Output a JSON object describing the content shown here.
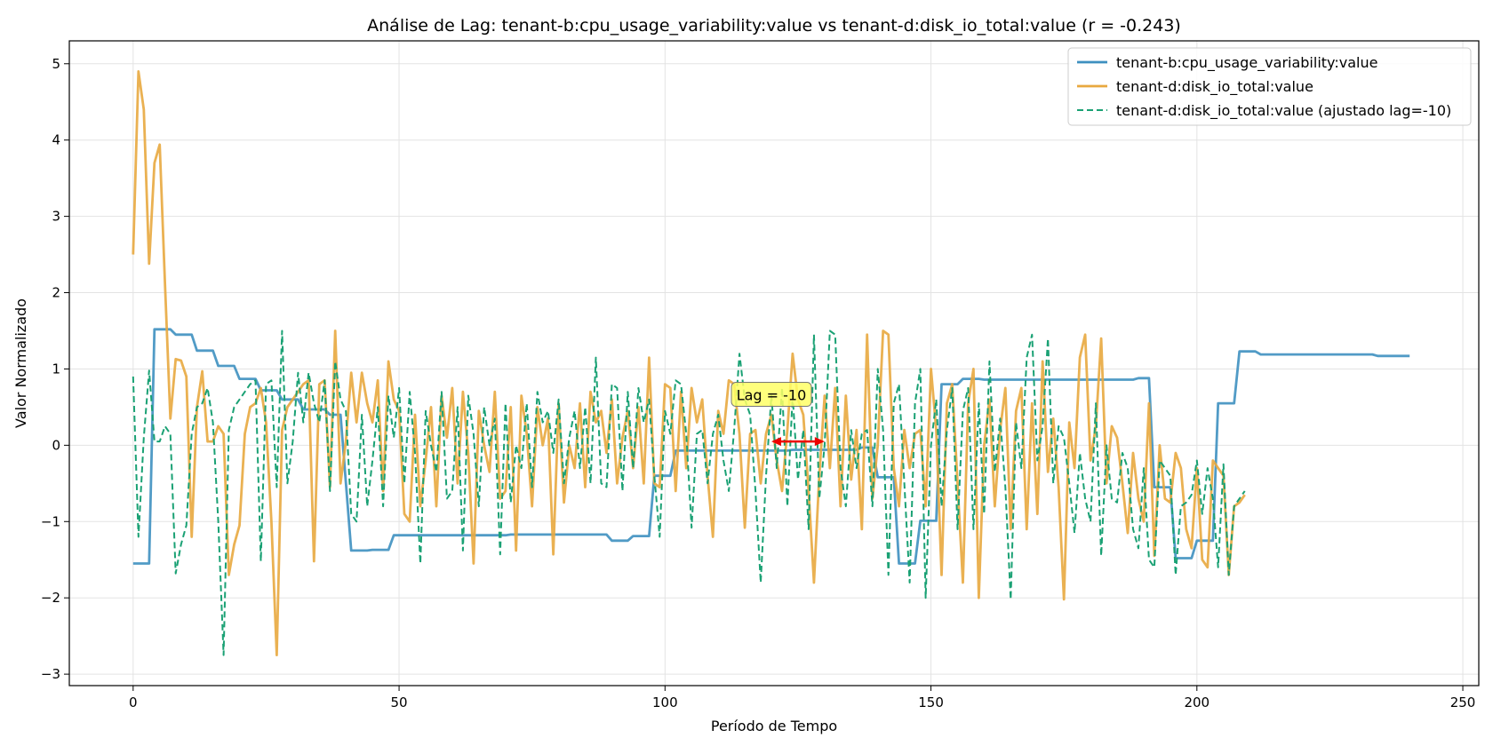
{
  "chart_data": {
    "type": "line",
    "title": "Análise de Lag: tenant-b:cpu_usage_variability:value vs tenant-d:disk_io_total:value (r = -0.243)",
    "xlabel": "Período de Tempo",
    "ylabel": "Valor Normalizado",
    "xlim": [
      -12,
      253
    ],
    "ylim": [
      -3.15,
      5.3
    ],
    "xticks": [
      0,
      50,
      100,
      150,
      200,
      250
    ],
    "yticks": [
      -3,
      -2,
      -1,
      0,
      1,
      2,
      3,
      4,
      5
    ],
    "grid": true,
    "legend_position": "top-right",
    "annotation": {
      "text": "Lag = -10",
      "arrow_from": 120,
      "arrow_to": 130,
      "arrow_y": 0.05,
      "label_x": 120,
      "label_y": 0.65
    },
    "colors": {
      "cpu": "#3e90c0",
      "disk": "#e8a93f",
      "shifted": "#1aa174",
      "arrow": "#ee0000",
      "annot_bg": "#ffff66"
    },
    "series": [
      {
        "name": "tenant-b:cpu_usage_variability:value",
        "style": "solid",
        "points": [
          [
            0,
            -1.55
          ],
          [
            3,
            -1.55
          ],
          [
            4,
            1.52
          ],
          [
            7,
            1.52
          ],
          [
            8,
            1.45
          ],
          [
            11,
            1.45
          ],
          [
            12,
            1.24
          ],
          [
            15,
            1.24
          ],
          [
            16,
            1.04
          ],
          [
            19,
            1.04
          ],
          [
            20,
            0.87
          ],
          [
            23,
            0.87
          ],
          [
            24,
            0.72
          ],
          [
            27,
            0.72
          ],
          [
            28,
            0.6
          ],
          [
            31,
            0.6
          ],
          [
            32,
            0.47
          ],
          [
            36,
            0.47
          ],
          [
            37,
            0.4
          ],
          [
            39,
            0.4
          ],
          [
            41,
            -1.38
          ],
          [
            44,
            -1.38
          ],
          [
            45,
            -1.37
          ],
          [
            48,
            -1.37
          ],
          [
            49,
            -1.18
          ],
          [
            70,
            -1.18
          ],
          [
            71,
            -1.17
          ],
          [
            89,
            -1.17
          ],
          [
            90,
            -1.25
          ],
          [
            93,
            -1.25
          ],
          [
            94,
            -1.19
          ],
          [
            97,
            -1.19
          ],
          [
            98,
            -0.4
          ],
          [
            101,
            -0.4
          ],
          [
            102,
            -0.07
          ],
          [
            123,
            -0.07
          ],
          [
            124,
            -0.06
          ],
          [
            136,
            -0.06
          ],
          [
            137,
            -0.03
          ],
          [
            139,
            -0.03
          ],
          [
            140,
            -0.42
          ],
          [
            143,
            -0.42
          ],
          [
            144,
            -1.55
          ],
          [
            147,
            -1.55
          ],
          [
            148,
            -0.99
          ],
          [
            151,
            -0.99
          ],
          [
            152,
            0.8
          ],
          [
            155,
            0.8
          ],
          [
            156,
            0.87
          ],
          [
            159,
            0.87
          ],
          [
            160,
            0.86
          ],
          [
            188,
            0.86
          ],
          [
            189,
            0.88
          ],
          [
            191,
            0.88
          ],
          [
            192,
            -0.55
          ],
          [
            195,
            -0.55
          ],
          [
            196,
            -1.48
          ],
          [
            199,
            -1.48
          ],
          [
            200,
            -1.25
          ],
          [
            203,
            -1.25
          ],
          [
            204,
            0.55
          ],
          [
            207,
            0.55
          ],
          [
            208,
            1.23
          ],
          [
            211,
            1.23
          ],
          [
            212,
            1.19
          ],
          [
            233,
            1.19
          ],
          [
            234,
            1.17
          ],
          [
            240,
            1.17
          ]
        ]
      },
      {
        "name": "tenant-d:disk_io_total:value",
        "style": "solid",
        "y": [
          2.5,
          4.9,
          4.4,
          2.38,
          3.7,
          3.94,
          2.1,
          0.35,
          1.13,
          1.11,
          0.9,
          -1.2,
          0.5,
          0.97,
          0.05,
          0.05,
          0.25,
          0.15,
          -1.7,
          -1.3,
          -1.05,
          0.15,
          0.5,
          0.55,
          0.75,
          0.3,
          -1.0,
          -2.75,
          0.2,
          0.5,
          0.6,
          0.7,
          0.8,
          0.85,
          -1.52,
          0.8,
          0.85,
          -0.55,
          1.5,
          -0.5,
          0.05,
          0.95,
          0.3,
          0.95,
          0.55,
          0.3,
          0.85,
          -0.6,
          1.1,
          0.6,
          0.45,
          -0.9,
          -1.0,
          0.4,
          -0.8,
          -0.2,
          0.5,
          -0.8,
          0.65,
          0.1,
          0.75,
          -0.5,
          0.7,
          -0.1,
          -1.55,
          0.45,
          0.0,
          -0.35,
          0.7,
          -0.7,
          -0.6,
          0.5,
          -1.38,
          0.65,
          0.15,
          -0.8,
          0.5,
          0.0,
          0.35,
          -1.43,
          0.55,
          -0.75,
          0.0,
          -0.3,
          0.55,
          -0.55,
          0.7,
          0.3,
          0.45,
          -0.1,
          0.6,
          -0.5,
          0.1,
          0.45,
          -0.3,
          0.5,
          -0.5,
          1.15,
          -0.5,
          -0.55,
          0.8,
          0.75,
          -0.6,
          0.7,
          -0.3,
          0.75,
          0.3,
          0.6,
          -0.4,
          -1.2,
          0.45,
          0.15,
          0.85,
          0.8,
          0.15,
          -1.08,
          0.15,
          0.2,
          -0.5,
          0.15,
          0.4,
          -0.2,
          -0.6,
          0.2,
          1.2,
          0.6,
          0.4,
          -0.6,
          -1.8,
          -0.4,
          0.65,
          -0.3,
          0.75,
          -0.8,
          0.65,
          -0.45,
          0.2,
          -1.1,
          1.45,
          -0.7,
          0.0,
          1.5,
          1.45,
          -0.3,
          -0.8,
          0.2,
          -0.3,
          0.15,
          0.2,
          -0.8,
          1.0,
          0.2,
          -1.7,
          0.55,
          0.8,
          -0.5,
          -1.8,
          0.55,
          1.0,
          -2.0,
          0.0,
          0.6,
          -0.8,
          0.2,
          0.75,
          -1.1,
          0.45,
          0.75,
          -1.1,
          0.55,
          -0.9,
          1.1,
          -0.35,
          0.35,
          -0.55,
          -2.02,
          0.3,
          -0.3,
          1.15,
          1.45,
          -0.2,
          0.25,
          1.4,
          -0.5,
          0.25,
          0.1,
          -0.5,
          -1.15,
          -0.1,
          -0.7,
          -1.0,
          0.55,
          -1.45,
          0.0,
          -0.7,
          -0.75,
          -0.1,
          -0.3,
          -1.1,
          -1.35,
          -0.3,
          -1.5,
          -1.6,
          -0.2,
          -0.3,
          -0.4,
          -1.7,
          -0.8,
          -0.75,
          -0.65
        ]
      },
      {
        "name": "tenant-d:disk_io_total:value (ajustado lag=-10)",
        "style": "dashed",
        "y": [
          0.9,
          -1.2,
          0.1,
          0.98,
          0.05,
          0.05,
          0.25,
          0.15,
          -1.68,
          -1.3,
          -1.05,
          0.15,
          0.5,
          0.55,
          0.75,
          0.3,
          -1.0,
          -2.75,
          0.2,
          0.5,
          0.6,
          0.7,
          0.8,
          0.85,
          -1.52,
          0.8,
          0.85,
          -0.55,
          1.5,
          -0.5,
          0.05,
          0.95,
          0.3,
          0.95,
          0.55,
          0.3,
          0.85,
          -0.6,
          1.1,
          0.6,
          0.45,
          -0.9,
          -1.0,
          0.4,
          -0.8,
          -0.2,
          0.5,
          -0.8,
          0.65,
          0.1,
          0.75,
          -0.5,
          0.7,
          -0.1,
          -1.55,
          0.45,
          0.0,
          -0.35,
          0.7,
          -0.7,
          -0.6,
          0.5,
          -1.38,
          0.65,
          0.15,
          -0.8,
          0.5,
          0.0,
          0.35,
          -1.43,
          0.55,
          -0.75,
          0.0,
          -0.3,
          0.55,
          -0.55,
          0.7,
          0.3,
          0.45,
          -0.1,
          0.6,
          -0.5,
          0.1,
          0.45,
          -0.3,
          0.5,
          -0.5,
          1.15,
          -0.5,
          -0.55,
          0.8,
          0.75,
          -0.6,
          0.7,
          -0.3,
          0.75,
          0.3,
          0.6,
          -0.4,
          -1.2,
          0.45,
          0.15,
          0.85,
          0.8,
          0.15,
          -1.08,
          0.15,
          0.2,
          -0.5,
          0.15,
          0.4,
          -0.2,
          -0.6,
          0.2,
          1.2,
          0.6,
          0.4,
          -0.6,
          -1.8,
          -0.4,
          0.65,
          -0.3,
          0.75,
          -0.8,
          0.65,
          -0.45,
          0.2,
          -1.1,
          1.45,
          -0.7,
          0.0,
          1.5,
          1.45,
          -0.3,
          -0.8,
          0.2,
          -0.3,
          0.15,
          0.2,
          -0.8,
          1.0,
          0.2,
          -1.7,
          0.55,
          0.8,
          -0.5,
          -1.8,
          0.55,
          1.0,
          -2.0,
          0.0,
          0.6,
          -0.8,
          0.2,
          0.75,
          -1.1,
          0.45,
          0.75,
          -1.1,
          0.55,
          -0.9,
          1.1,
          -0.35,
          0.35,
          -0.55,
          -2.02,
          0.3,
          -0.3,
          1.15,
          1.45,
          -0.2,
          0.25,
          1.4,
          -0.5,
          0.25,
          0.1,
          -0.5,
          -1.15,
          -0.1,
          -0.7,
          -1.0,
          0.55,
          -1.45,
          0.0,
          -0.7,
          -0.75,
          -0.1,
          -0.3,
          -1.1,
          -1.35,
          -0.3,
          -1.5,
          -1.6,
          -0.2,
          -0.3,
          -0.4,
          -1.7,
          -0.8,
          -0.75,
          -0.65,
          -0.2,
          -0.9,
          -0.3,
          -0.7,
          -1.6,
          -0.25,
          -1.7,
          -0.8,
          -0.7,
          -0.6
        ]
      }
    ]
  }
}
